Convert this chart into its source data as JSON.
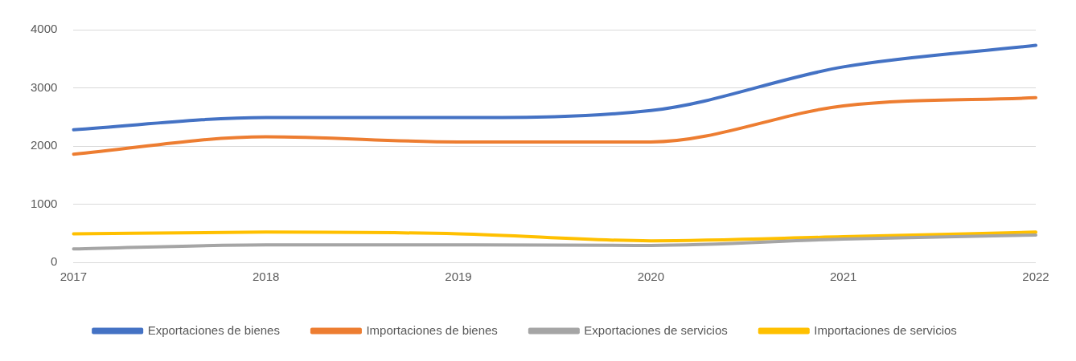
{
  "chart_data": {
    "type": "line",
    "categories": [
      "2017",
      "2018",
      "2019",
      "2020",
      "2021",
      "2022"
    ],
    "series": [
      {
        "name": "Exportaciones de bienes",
        "color": "#4472c4",
        "values": [
          2280,
          2490,
          2490,
          2610,
          3360,
          3730
        ]
      },
      {
        "name": "Importaciones de bienes",
        "color": "#ed7d31",
        "values": [
          1860,
          2160,
          2070,
          2070,
          2690,
          2830
        ]
      },
      {
        "name": "Exportaciones de servicios",
        "color": "#a5a5a5",
        "values": [
          230,
          300,
          300,
          290,
          400,
          470
        ]
      },
      {
        "name": "Importaciones de servicios",
        "color": "#ffc000",
        "values": [
          490,
          520,
          490,
          370,
          440,
          520
        ]
      }
    ],
    "ylim": [
      0,
      4000
    ],
    "yticks": [
      0,
      1000,
      2000,
      3000,
      4000
    ],
    "grid": "y",
    "legend": "bottom",
    "marker": "none",
    "line_style": "solid"
  }
}
